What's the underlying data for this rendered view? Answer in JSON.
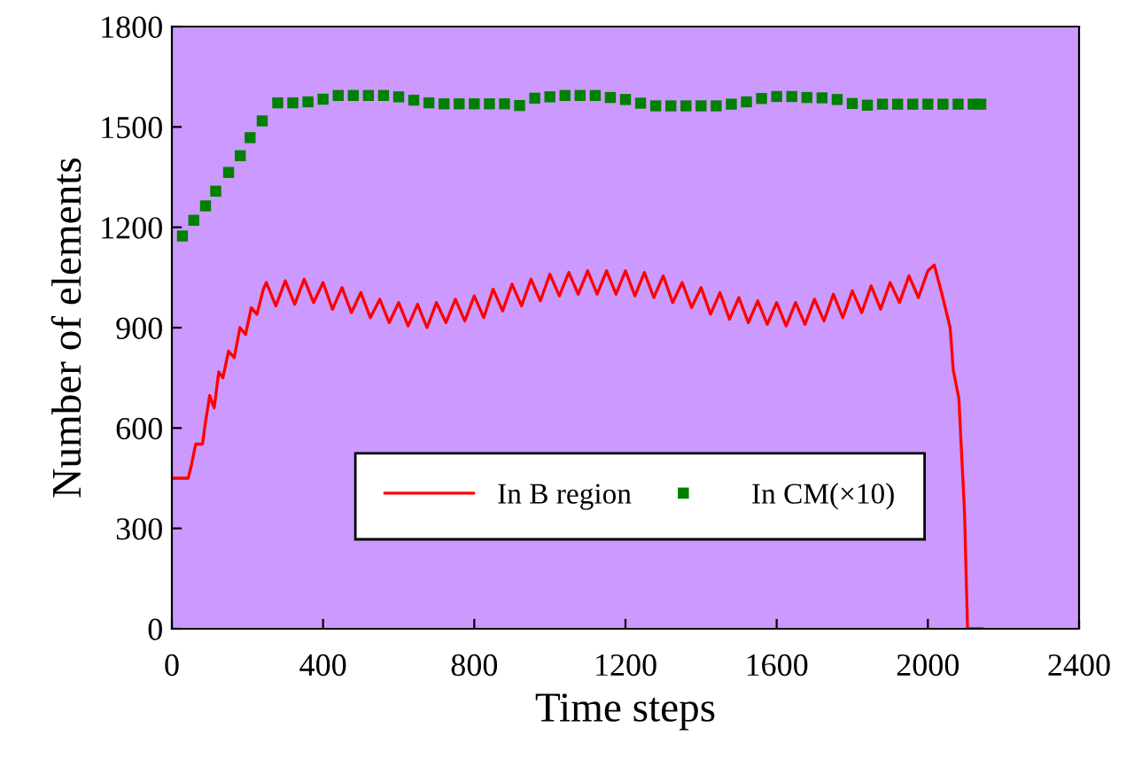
{
  "chart_data": {
    "type": "line",
    "xlabel": "Time steps",
    "ylabel": "Number of elements",
    "xlim": [
      0,
      2400
    ],
    "ylim": [
      0,
      1800
    ],
    "xticks": [
      0,
      400,
      800,
      1200,
      1600,
      2000,
      2400
    ],
    "yticks": [
      0,
      300,
      600,
      900,
      1200,
      1500,
      1800
    ],
    "grid": false,
    "legend": "bottom",
    "series": [
      {
        "name": "In B region",
        "color": "#ff0000",
        "marker": "none",
        "line_style": "solid",
        "x": [
          0,
          43,
          51,
          63,
          81,
          89,
          100,
          112,
          124,
          135,
          150,
          165,
          180,
          195,
          210,
          225,
          242,
          250,
          275,
          300,
          325,
          350,
          375,
          400,
          425,
          450,
          475,
          500,
          525,
          550,
          575,
          600,
          625,
          650,
          675,
          700,
          725,
          750,
          775,
          800,
          825,
          850,
          875,
          900,
          925,
          950,
          975,
          1000,
          1025,
          1050,
          1075,
          1100,
          1125,
          1150,
          1175,
          1200,
          1225,
          1250,
          1275,
          1300,
          1325,
          1350,
          1375,
          1400,
          1425,
          1450,
          1475,
          1500,
          1525,
          1550,
          1575,
          1600,
          1625,
          1650,
          1675,
          1700,
          1725,
          1750,
          1775,
          1800,
          1825,
          1850,
          1875,
          1900,
          1925,
          1950,
          1975,
          2000,
          2017,
          2036,
          2059,
          2067,
          2082,
          2097,
          2105,
          2143
        ],
        "values": [
          450,
          450,
          485,
          552,
          552,
          618,
          697,
          660,
          768,
          750,
          830,
          810,
          900,
          880,
          960,
          940,
          1015,
          1035,
          965,
          1040,
          970,
          1045,
          975,
          1035,
          955,
          1020,
          945,
          1005,
          930,
          985,
          915,
          975,
          905,
          970,
          900,
          975,
          915,
          985,
          920,
          995,
          930,
          1015,
          950,
          1030,
          965,
          1045,
          980,
          1060,
          995,
          1065,
          1000,
          1070,
          1000,
          1070,
          1000,
          1070,
          995,
          1065,
          990,
          1055,
          975,
          1035,
          960,
          1020,
          940,
          1005,
          925,
          990,
          915,
          980,
          910,
          975,
          905,
          975,
          910,
          985,
          920,
          1000,
          930,
          1010,
          945,
          1025,
          955,
          1035,
          975,
          1055,
          990,
          1070,
          1087,
          1006,
          900,
          775,
          688,
          347,
          0,
          0
        ]
      },
      {
        "name": "In CM(×10)",
        "type": "scatter",
        "color": "#008000",
        "marker": "square",
        "x": [
          28,
          58,
          89,
          116,
          150,
          181,
          207,
          239,
          280,
          320,
          360,
          400,
          440,
          480,
          520,
          560,
          600,
          640,
          680,
          720,
          760,
          800,
          840,
          880,
          920,
          960,
          1000,
          1040,
          1080,
          1120,
          1160,
          1200,
          1240,
          1280,
          1320,
          1360,
          1400,
          1440,
          1480,
          1520,
          1560,
          1600,
          1640,
          1680,
          1720,
          1760,
          1800,
          1840,
          1880,
          1920,
          1960,
          2000,
          2040,
          2080,
          2120,
          2140
        ],
        "values": [
          1174,
          1221,
          1264,
          1308,
          1364,
          1414,
          1468,
          1518,
          1572,
          1572,
          1575,
          1583,
          1594,
          1594,
          1594,
          1594,
          1590,
          1580,
          1572,
          1569,
          1569,
          1569,
          1569,
          1569,
          1564,
          1586,
          1590,
          1594,
          1594,
          1594,
          1588,
          1582,
          1571,
          1563,
          1563,
          1563,
          1563,
          1563,
          1568,
          1575,
          1585,
          1591,
          1591,
          1588,
          1587,
          1582,
          1570,
          1565,
          1568,
          1568,
          1568,
          1568,
          1568,
          1568,
          1568,
          1568
        ]
      }
    ]
  }
}
